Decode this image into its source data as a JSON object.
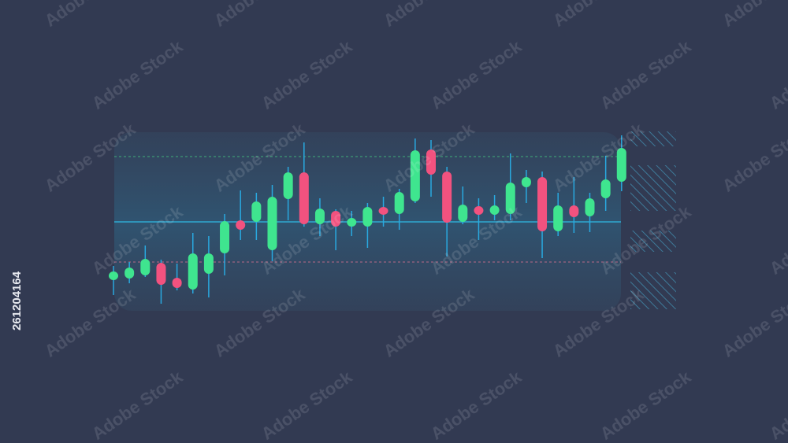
{
  "chart_data": {
    "type": "candlestick",
    "open": [
      44,
      46,
      50,
      66,
      47,
      32,
      52,
      78,
      120,
      118,
      82,
      147,
      181,
      115,
      132,
      112,
      112,
      137,
      128,
      144,
      210,
      182,
      118,
      138,
      127,
      128,
      162,
      175,
      106,
      139,
      125,
      148,
      169
    ],
    "high": [
      62,
      67,
      88,
      70,
      65,
      104,
      100,
      128,
      158,
      155,
      165,
      188,
      219,
      148,
      134,
      132,
      142,
      150,
      160,
      224,
      222,
      188,
      163,
      148,
      152,
      205,
      184,
      182,
      155,
      175,
      155,
      202,
      228
    ],
    "low": [
      25,
      40,
      48,
      14,
      31,
      27,
      22,
      50,
      95,
      95,
      68,
      120,
      112,
      100,
      82,
      100,
      85,
      112,
      108,
      142,
      150,
      74,
      115,
      95,
      120,
      120,
      142,
      72,
      100,
      104,
      105,
      132,
      157
    ],
    "close": [
      55,
      60,
      71,
      38,
      34,
      78,
      78,
      119,
      108,
      144,
      150,
      181,
      115,
      135,
      112,
      123,
      137,
      127,
      156,
      209,
      178,
      117,
      140,
      127,
      139,
      168,
      175,
      106,
      139,
      124,
      148,
      172,
      212
    ],
    "up_color": "#3fe58f",
    "down_color": "#f2527f",
    "levels": [
      {
        "value": 201,
        "color": "#3fae7a",
        "style": "dashed"
      },
      {
        "value": 118,
        "color": "#2fa8d0",
        "style": "solid"
      },
      {
        "value": 67,
        "color": "#b86a88",
        "style": "dashed"
      }
    ],
    "ylim": [
      0,
      250
    ]
  },
  "watermark": "Adobe Stock",
  "stock_id": "261204164"
}
